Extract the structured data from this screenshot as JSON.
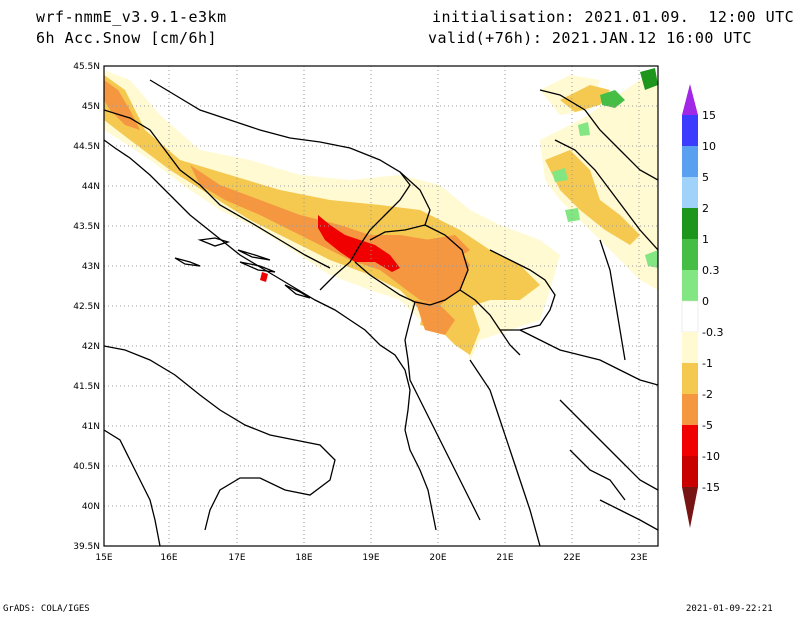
{
  "header": {
    "model": "wrf-nmmE_v3.9.1-e3km",
    "field": "6h Acc.Snow [cm/6h]",
    "init": "initialisation: 2021.01.09.  12:00 UTC",
    "valid": "valid(+76h): 2021.JAN.12 16:00 UTC"
  },
  "axes": {
    "lat_labels": [
      "45.5N",
      "45N",
      "44.5N",
      "44N",
      "43.5N",
      "43N",
      "42.5N",
      "42N",
      "41.5N",
      "41N",
      "40.5N",
      "40N",
      "39.5N"
    ],
    "lon_labels": [
      "15E",
      "16E",
      "17E",
      "18E",
      "19E",
      "20E",
      "21E",
      "22E",
      "23E"
    ]
  },
  "colorbar": {
    "labels": [
      "15",
      "10",
      "5",
      "2",
      "1",
      "0.3",
      "0",
      "-0.3",
      "-1",
      "-2",
      "-5",
      "-10",
      "-15"
    ],
    "colors": [
      "#3c3cff",
      "#5aa0f0",
      "#a0d2fa",
      "#1e961e",
      "#46be46",
      "#82e682",
      "#ffffff",
      "#fffad2",
      "#f5c850",
      "#f59641",
      "#f00000",
      "#c80000",
      "#960000"
    ],
    "top_arrow_color": "#a028e6",
    "bottom_arrow_color": "#781414"
  },
  "footer": {
    "left": "GrADS: COLA/IGES",
    "right": "2021-01-09-22:21"
  }
}
